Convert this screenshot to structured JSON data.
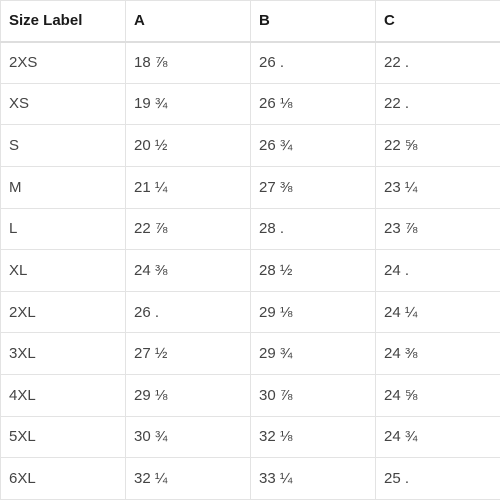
{
  "table": {
    "headers": [
      "Size Label",
      "A",
      "B",
      "C"
    ],
    "rows": [
      [
        "2XS",
        "18 ⅞",
        "26 .",
        "22 ."
      ],
      [
        "XS",
        "19 ¾",
        "26 ⅛",
        "22 ."
      ],
      [
        "S",
        "20 ½",
        "26 ¾",
        "22 ⅝"
      ],
      [
        "M",
        "21 ¼",
        "27 ⅜",
        "23 ¼"
      ],
      [
        "L",
        "22 ⅞",
        "28 .",
        "23 ⅞"
      ],
      [
        "XL",
        "24 ⅜",
        "28 ½",
        "24 ."
      ],
      [
        "2XL",
        "26 .",
        "29 ⅛",
        "24 ¼"
      ],
      [
        "3XL",
        "27 ½",
        "29 ¾",
        "24 ⅜"
      ],
      [
        "4XL",
        "29 ⅛",
        "30 ⅞",
        "24 ⅝"
      ],
      [
        "5XL",
        "30 ¾",
        "32 ⅛",
        "24 ¾"
      ],
      [
        "6XL",
        "32 ¼",
        "33 ¼",
        "25 ."
      ]
    ]
  }
}
